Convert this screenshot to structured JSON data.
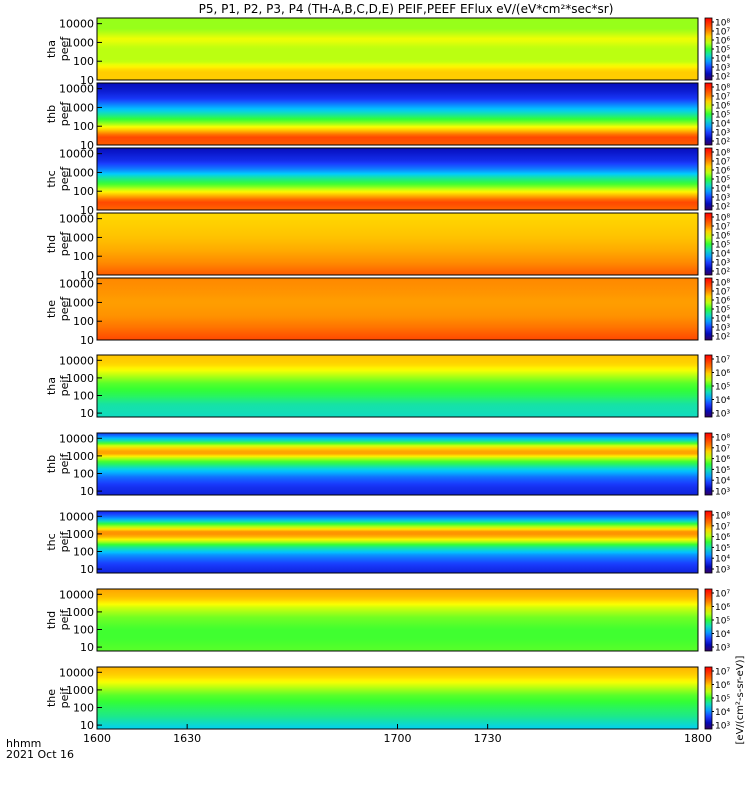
{
  "title": "P5, P1, P2, P3, P4 (TH-A,B,C,D,E) PEIF,PEEF EFlux eV/(eV*cm²*sec*sr)",
  "colorbar_unit_label": "[eV/(cm²-s-sr-eV)]",
  "colors": {
    "red": "#ff0000",
    "orange": "#ff6a00",
    "yellow": "#ffff00",
    "green": "#33ff33",
    "cyan": "#00ccff",
    "blue": "#1a3cff",
    "navy": "#0000aa",
    "purple": "#330066",
    "black": "#000000"
  },
  "chart_data": [
    {
      "type": "heatmap",
      "ylabel": [
        "tha",
        "peef"
      ],
      "y_scale": "log",
      "ylim": [
        10,
        20000
      ],
      "y_ticks": [
        "10",
        "100",
        "1000",
        "10000"
      ],
      "colorbar_ticks": [
        "10⁸",
        "10⁷",
        "10⁶",
        "10⁵",
        "10⁴",
        "10³",
        "10²"
      ],
      "colorbar_range_log10": [
        1,
        8.5
      ],
      "profile": [
        [
          10,
          6.3
        ],
        [
          30,
          6.3
        ],
        [
          100,
          5.5
        ],
        [
          500,
          5.5
        ],
        [
          1500,
          5.8
        ],
        [
          5000,
          5.3
        ],
        [
          20000,
          5.3
        ]
      ]
    },
    {
      "type": "heatmap",
      "ylabel": [
        "thb",
        "peef"
      ],
      "y_scale": "log",
      "ylim": [
        10,
        20000
      ],
      "y_ticks": [
        "10",
        "100",
        "1000",
        "10000"
      ],
      "colorbar_ticks": [
        "10⁸",
        "10⁷",
        "10⁶",
        "10⁵",
        "10⁴",
        "10³",
        "10²"
      ],
      "colorbar_range_log10": [
        1,
        8.5
      ],
      "profile": [
        [
          10,
          7.3
        ],
        [
          25,
          7.6
        ],
        [
          60,
          6.4
        ],
        [
          150,
          5.2
        ],
        [
          400,
          4.2
        ],
        [
          1200,
          3.2
        ],
        [
          3000,
          2.4
        ],
        [
          8000,
          2.0
        ],
        [
          20000,
          1.8
        ]
      ]
    },
    {
      "type": "heatmap",
      "ylabel": [
        "thc",
        "peef"
      ],
      "y_scale": "log",
      "ylim": [
        10,
        20000
      ],
      "y_ticks": [
        "10",
        "100",
        "1000",
        "10000"
      ],
      "colorbar_ticks": [
        "10⁸",
        "10⁷",
        "10⁶",
        "10⁵",
        "10⁴",
        "10³",
        "10²"
      ],
      "colorbar_range_log10": [
        1,
        8.5
      ],
      "profile": [
        [
          10,
          7.2
        ],
        [
          25,
          7.6
        ],
        [
          70,
          6.3
        ],
        [
          200,
          5.0
        ],
        [
          600,
          4.0
        ],
        [
          1500,
          3.0
        ],
        [
          4000,
          2.3
        ],
        [
          20000,
          1.8
        ]
      ]
    },
    {
      "type": "heatmap",
      "ylabel": [
        "thd",
        "peef"
      ],
      "y_scale": "log",
      "ylim": [
        10,
        20000
      ],
      "y_ticks": [
        "10",
        "100",
        "1000",
        "10000"
      ],
      "colorbar_ticks": [
        "10⁸",
        "10⁷",
        "10⁶",
        "10⁵",
        "10⁴",
        "10³",
        "10²"
      ],
      "colorbar_range_log10": [
        1,
        8.5
      ],
      "profile": [
        [
          10,
          7.3
        ],
        [
          40,
          6.9
        ],
        [
          200,
          6.6
        ],
        [
          1000,
          6.4
        ],
        [
          4000,
          6.3
        ],
        [
          20000,
          6.2
        ]
      ]
    },
    {
      "type": "heatmap",
      "ylabel": [
        "the",
        "peef"
      ],
      "y_scale": "log",
      "ylim": [
        10,
        20000
      ],
      "y_ticks": [
        "10",
        "100",
        "1000",
        "10000"
      ],
      "colorbar_ticks": [
        "10⁸",
        "10⁷",
        "10⁶",
        "10⁵",
        "10⁴",
        "10³",
        "10²"
      ],
      "colorbar_range_log10": [
        1,
        8.5
      ],
      "profile": [
        [
          10,
          7.6
        ],
        [
          40,
          7.1
        ],
        [
          200,
          6.8
        ],
        [
          1000,
          6.7
        ],
        [
          4000,
          6.8
        ],
        [
          20000,
          6.9
        ]
      ]
    },
    {
      "type": "heatmap",
      "ylabel": [
        "tha",
        "peif"
      ],
      "y_scale": "log",
      "ylim": [
        6,
        20000
      ],
      "y_ticks": [
        "10",
        "100",
        "1000",
        "10000"
      ],
      "colorbar_ticks": [
        "10⁷",
        "10⁶",
        "10⁵",
        "10⁴",
        "10³"
      ],
      "colorbar_range_log10": [
        2.5,
        7.8
      ],
      "profile": [
        [
          6,
          4.6
        ],
        [
          30,
          4.7
        ],
        [
          100,
          5.0
        ],
        [
          500,
          5.3
        ],
        [
          2000,
          5.8
        ],
        [
          6000,
          6.2
        ],
        [
          20000,
          6.3
        ]
      ]
    },
    {
      "type": "heatmap",
      "ylabel": [
        "thb",
        "peif"
      ],
      "y_scale": "log",
      "ylim": [
        6,
        20000
      ],
      "y_ticks": [
        "10",
        "100",
        "1000",
        "10000"
      ],
      "colorbar_ticks": [
        "10⁸",
        "10⁷",
        "10⁶",
        "10⁵",
        "10⁴",
        "10³"
      ],
      "colorbar_range_log10": [
        2.5,
        8.5
      ],
      "profile": [
        [
          6,
          3.4
        ],
        [
          20,
          3.6
        ],
        [
          60,
          4.0
        ],
        [
          200,
          4.8
        ],
        [
          600,
          5.8
        ],
        [
          1500,
          7.2
        ],
        [
          3000,
          6.6
        ],
        [
          8000,
          4.8
        ],
        [
          20000,
          3.6
        ]
      ]
    },
    {
      "type": "heatmap",
      "ylabel": [
        "thc",
        "peif"
      ],
      "y_scale": "log",
      "ylim": [
        6,
        20000
      ],
      "y_ticks": [
        "10",
        "100",
        "1000",
        "10000"
      ],
      "colorbar_ticks": [
        "10⁸",
        "10⁷",
        "10⁶",
        "10⁵",
        "10⁴",
        "10³"
      ],
      "colorbar_range_log10": [
        2.5,
        8.5
      ],
      "profile": [
        [
          6,
          3.4
        ],
        [
          20,
          3.7
        ],
        [
          60,
          4.2
        ],
        [
          200,
          5.2
        ],
        [
          600,
          6.8
        ],
        [
          1200,
          7.3
        ],
        [
          3000,
          5.8
        ],
        [
          8000,
          4.2
        ],
        [
          20000,
          3.4
        ]
      ]
    },
    {
      "type": "heatmap",
      "ylabel": [
        "thd",
        "peif"
      ],
      "y_scale": "log",
      "ylim": [
        6,
        20000
      ],
      "y_ticks": [
        "10",
        "100",
        "1000",
        "10000"
      ],
      "colorbar_ticks": [
        "10⁷",
        "10⁶",
        "10⁵",
        "10⁴",
        "10³"
      ],
      "colorbar_range_log10": [
        2.5,
        7.8
      ],
      "profile": [
        [
          6,
          5.3
        ],
        [
          30,
          5.2
        ],
        [
          100,
          5.2
        ],
        [
          500,
          5.4
        ],
        [
          2000,
          5.8
        ],
        [
          6000,
          6.3
        ],
        [
          20000,
          6.5
        ]
      ]
    },
    {
      "type": "heatmap",
      "ylabel": [
        "the",
        "peif"
      ],
      "y_scale": "log",
      "ylim": [
        6,
        20000
      ],
      "y_ticks": [
        "10",
        "100",
        "1000",
        "10000"
      ],
      "colorbar_ticks": [
        "10⁷",
        "10⁶",
        "10⁵",
        "10⁴",
        "10³"
      ],
      "colorbar_range_log10": [
        2.5,
        7.8
      ],
      "profile": [
        [
          6,
          4.4
        ],
        [
          30,
          4.8
        ],
        [
          100,
          5.0
        ],
        [
          500,
          5.3
        ],
        [
          2000,
          5.8
        ],
        [
          6000,
          6.2
        ],
        [
          20000,
          6.4
        ]
      ]
    }
  ],
  "x_axis": {
    "ticks": [
      "1600",
      "1630",
      "1700",
      "1730",
      "1800"
    ],
    "format_label": "hhmm",
    "date_label": "2021 Oct 16"
  }
}
